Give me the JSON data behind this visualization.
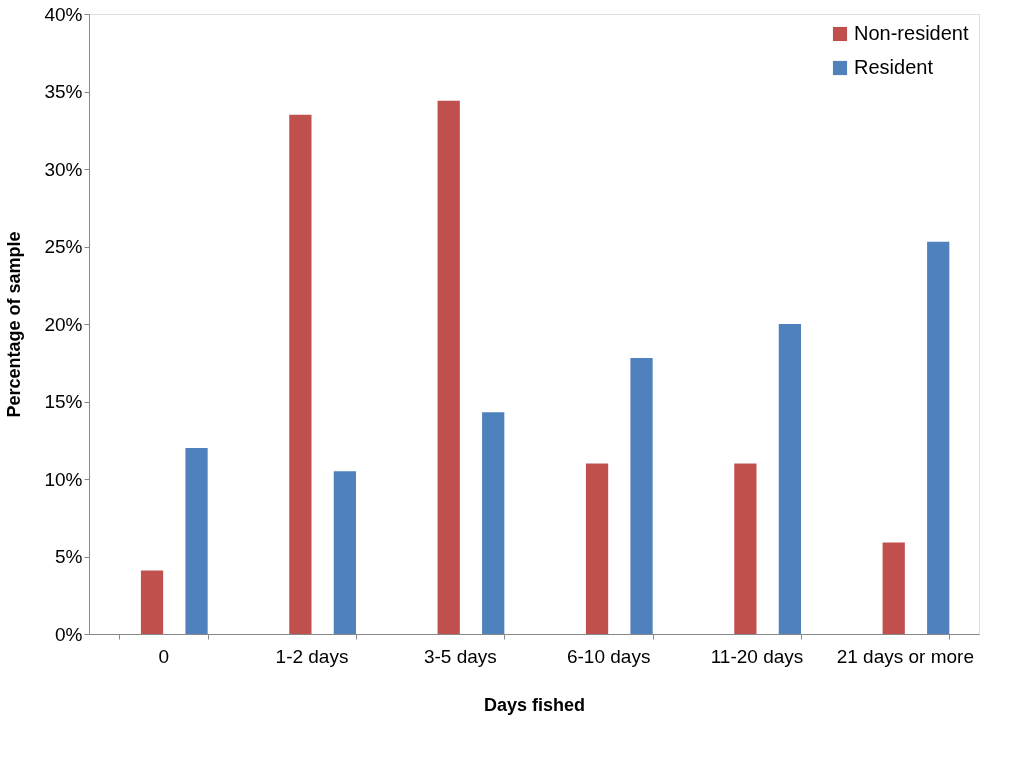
{
  "chart_data": {
    "type": "bar",
    "xlabel": "Days fished",
    "ylabel": "Percentage of sample",
    "categories": [
      "0",
      "1-2 days",
      "3-5 days",
      "6-10 days",
      "11-20 days",
      "21 days or more"
    ],
    "series": [
      {
        "name": "Non-resident",
        "color": "#c0504d",
        "values": [
          4.1,
          33.5,
          34.4,
          11.0,
          11.0,
          5.9
        ]
      },
      {
        "name": "Resident",
        "color": "#4f81bd",
        "values": [
          12.0,
          10.5,
          14.3,
          17.8,
          20.0,
          25.3
        ]
      }
    ],
    "ylim": [
      0,
      40
    ],
    "yticks": [
      {
        "value": 0,
        "label": "0%"
      },
      {
        "value": 5,
        "label": "5%"
      },
      {
        "value": 10,
        "label": "10%"
      },
      {
        "value": 15,
        "label": "15%"
      },
      {
        "value": 20,
        "label": "20%"
      },
      {
        "value": 25,
        "label": "25%"
      },
      {
        "value": 30,
        "label": "30%"
      },
      {
        "value": 35,
        "label": "35%"
      },
      {
        "value": 40,
        "label": "40%"
      }
    ],
    "grid": false,
    "legend": "top right"
  }
}
